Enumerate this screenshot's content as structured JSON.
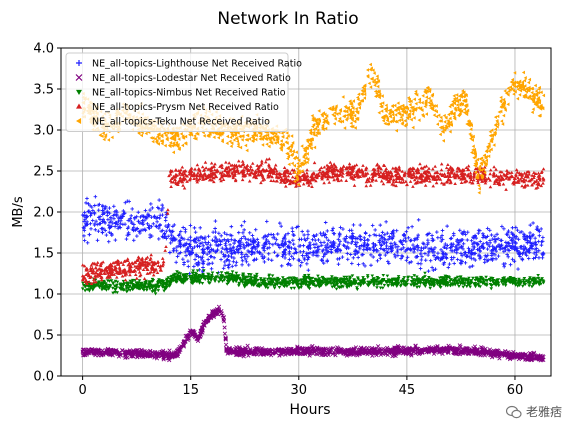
{
  "chart_data": {
    "type": "scatter",
    "title": "Network In Ratio",
    "xlabel": "Hours",
    "ylabel": "MB/s",
    "xlim": [
      -3,
      65
    ],
    "ylim": [
      0,
      4.0
    ],
    "xticks": [
      0,
      15,
      30,
      45,
      60
    ],
    "yticks": [
      0.0,
      0.5,
      1.0,
      1.5,
      2.0,
      2.5,
      3.0,
      3.5,
      4.0
    ],
    "grid": true,
    "legend_position": "upper-left",
    "series": [
      {
        "name": "NE_all-topics-Lighthouse Net Received Ratio",
        "color": "#1f1fff",
        "marker": "+",
        "x": [
          0,
          5,
          10,
          11.5,
          12.5,
          15,
          20,
          25,
          30,
          35,
          40,
          45,
          50,
          55,
          60,
          64
        ],
        "y": [
          1.9,
          1.9,
          1.85,
          1.85,
          1.6,
          1.55,
          1.55,
          1.6,
          1.55,
          1.6,
          1.6,
          1.6,
          1.55,
          1.6,
          1.6,
          1.6
        ],
        "spread": 0.4
      },
      {
        "name": "NE_all-topics-Lodestar Net Received Ratio",
        "color": "#800080",
        "marker": "x",
        "x": [
          0,
          5,
          10,
          13,
          14,
          15,
          16,
          17,
          18,
          19,
          19.6,
          20,
          25,
          30,
          35,
          40,
          45,
          50,
          55,
          60,
          64
        ],
        "y": [
          0.3,
          0.28,
          0.26,
          0.25,
          0.4,
          0.55,
          0.45,
          0.65,
          0.75,
          0.8,
          0.7,
          0.3,
          0.3,
          0.3,
          0.3,
          0.3,
          0.3,
          0.32,
          0.3,
          0.25,
          0.22
        ],
        "spread": 0.08
      },
      {
        "name": "NE_all-topics-Nimbus Net Received Ratio",
        "color": "#008000",
        "marker": "v",
        "x": [
          0,
          5,
          10,
          11.5,
          12.5,
          15,
          20,
          25,
          30,
          35,
          40,
          45,
          50,
          55,
          60,
          64
        ],
        "y": [
          1.1,
          1.1,
          1.1,
          1.1,
          1.2,
          1.2,
          1.2,
          1.15,
          1.15,
          1.15,
          1.15,
          1.15,
          1.15,
          1.15,
          1.15,
          1.15
        ],
        "spread": 0.12
      },
      {
        "name": "NE_all-topics-Prysm Net Received Ratio",
        "color": "#d62020",
        "marker": "^",
        "x": [
          0,
          5,
          10,
          11.5,
          12,
          15,
          20,
          25,
          30,
          35,
          40,
          45,
          50,
          55,
          60,
          64
        ],
        "y": [
          1.25,
          1.3,
          1.35,
          1.4,
          2.4,
          2.45,
          2.5,
          2.5,
          2.4,
          2.5,
          2.45,
          2.45,
          2.45,
          2.45,
          2.4,
          2.4
        ],
        "spread": 0.2
      },
      {
        "name": "NE_all-topics-Teku Net Received Ratio",
        "color": "#ffa500",
        "marker": "<",
        "x": [
          0,
          3,
          6,
          10,
          13,
          16,
          20,
          24,
          28,
          30,
          32,
          35,
          38,
          40,
          42,
          45,
          48,
          50,
          53,
          55,
          58,
          60,
          64
        ],
        "y": [
          3.3,
          3.0,
          3.2,
          3.0,
          2.9,
          3.1,
          3.0,
          3.0,
          2.9,
          2.5,
          3.0,
          3.2,
          3.2,
          3.7,
          3.2,
          3.2,
          3.4,
          3.0,
          3.4,
          2.4,
          3.2,
          3.6,
          3.3
        ],
        "spread": 0.3
      }
    ]
  },
  "watermark": "老雅痞"
}
